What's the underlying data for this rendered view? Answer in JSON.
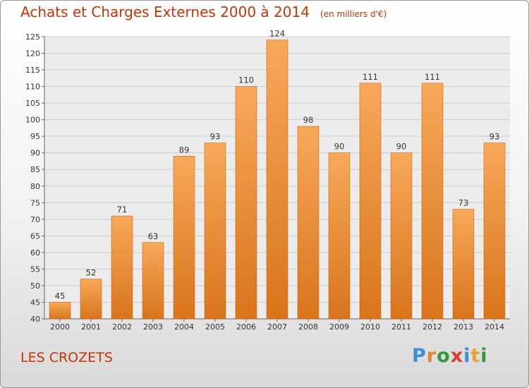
{
  "title": "Achats et Charges Externes 2000 à 2014",
  "unit_note": "(en milliers d'€)",
  "commune": "LES CROZETS",
  "logo": {
    "letters": [
      "P",
      "r",
      "o",
      "x",
      "i",
      "t",
      "i"
    ],
    "colors": [
      "#3a8fd6",
      "#e8842a",
      "#2e9a3c",
      "#e23a2a",
      "#3a8fd6",
      "#e8a02a",
      "#2e9a3c"
    ]
  },
  "colors": {
    "bar_light": "#f7a95a",
    "bar_dark": "#d9741c",
    "bar_edge": "#c8661a",
    "title": "#cc3300",
    "grid": "#cccccc"
  },
  "chart_data": {
    "type": "bar",
    "title": "Achats et Charges Externes 2000 à 2014",
    "categories": [
      "2000",
      "2001",
      "2002",
      "2003",
      "2004",
      "2005",
      "2006",
      "2007",
      "2008",
      "2009",
      "2010",
      "2011",
      "2012",
      "2013",
      "2014"
    ],
    "values": [
      45,
      52,
      71,
      63,
      89,
      93,
      110,
      124,
      98,
      90,
      111,
      90,
      111,
      73,
      93
    ],
    "ylim": [
      40,
      125
    ],
    "yticks": [
      40,
      45,
      50,
      55,
      60,
      65,
      70,
      75,
      80,
      85,
      90,
      95,
      100,
      105,
      110,
      115,
      120,
      125
    ],
    "grid": true,
    "legend": "none"
  }
}
